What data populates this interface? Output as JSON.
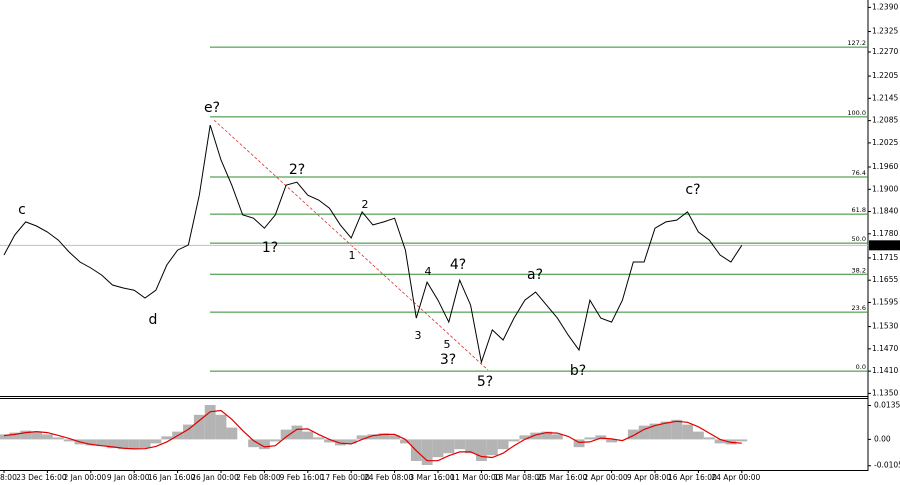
{
  "chart_data": {
    "type": "line",
    "categories": [
      "8:00",
      null,
      null,
      null,
      "23 Dec 16:00",
      null,
      null,
      null,
      "2 Jan 00:00",
      null,
      null,
      null,
      "9 Jan 08:00",
      null,
      null,
      null,
      "16 Jan 16:00",
      null,
      null,
      null,
      "26 Jan 00:00",
      null,
      null,
      null,
      "2 Feb 08:00",
      null,
      null,
      null,
      "9 Feb 16:00",
      null,
      null,
      null,
      "17 Feb 00:00",
      null,
      null,
      null,
      "24 Feb 08:00",
      null,
      null,
      null,
      "3 Mar 16:00",
      null,
      null,
      null,
      "11 Mar 00:00",
      null,
      null,
      null,
      "18 Mar 08:00",
      null,
      null,
      null,
      "25 Mar 16:00",
      null,
      null,
      null,
      "2 Apr 00:00",
      null,
      null,
      null,
      "9 Apr 08:00",
      null,
      null,
      null,
      "16 Apr 16:00",
      null,
      null,
      null,
      "24 Apr 00:00"
    ],
    "values": [
      1.1723,
      1.1777,
      1.1812,
      1.1801,
      1.1785,
      1.1763,
      1.1731,
      1.1704,
      1.1688,
      1.1669,
      1.1642,
      1.1634,
      1.1628,
      1.1607,
      1.1628,
      1.1696,
      1.1736,
      1.175,
      1.1884,
      1.2073,
      1.1979,
      1.1911,
      1.1831,
      1.1822,
      1.1795,
      1.1831,
      1.1911,
      1.1919,
      1.1884,
      1.1871,
      1.1849,
      1.1804,
      1.1769,
      1.1839,
      1.1804,
      1.1812,
      1.1822,
      1.1736,
      1.1553,
      1.165,
      1.1601,
      1.1542,
      1.1655,
      1.1588,
      1.1434,
      1.1521,
      1.1494,
      1.1553,
      1.1601,
      1.1623,
      1.1588,
      1.1553,
      1.1507,
      1.1467,
      1.1601,
      1.1553,
      1.1542,
      1.1601,
      1.1704,
      1.1704,
      1.1795,
      1.1812,
      1.1817,
      1.1839,
      1.1785,
      1.1763,
      1.1723,
      1.1704,
      1.1749
    ],
    "color": "#000000",
    "ylim": [
      1.1343,
      1.241
    ],
    "yticks": [
      {
        "value": 1.239,
        "label": "1.2390"
      },
      1.2325,
      {
        "value": 1.227,
        "label": "1.2270"
      },
      1.2205,
      1.2145,
      1.2085,
      1.2025,
      {
        "value": 1.196,
        "label": "1.1960"
      },
      {
        "value": 1.19,
        "label": "1.1900"
      },
      {
        "value": 1.184,
        "label": "1.1840"
      },
      {
        "value": 1.178,
        "label": "1.1780"
      },
      1.1715,
      1.1655,
      1.1595,
      {
        "value": 1.153,
        "label": "1.1530"
      },
      {
        "value": 1.147,
        "label": "1.1470"
      },
      {
        "value": 1.141,
        "label": "1.1410"
      },
      {
        "value": 1.135,
        "label": "1.1350"
      }
    ],
    "last_price": 1.1749,
    "fib_color": "#2e8b2e",
    "fib_levels": [
      {
        "label": "127.2",
        "price": 1.2283
      },
      {
        "label": "100.0",
        "price": 1.2095
      },
      {
        "label": "76.4",
        "price": 1.1933
      },
      {
        "label": "61.8",
        "price": 1.1833
      },
      {
        "label": "50.0",
        "price": 1.1755
      },
      {
        "label": "38.2",
        "price": 1.1671
      },
      {
        "label": "23.6",
        "price": 1.1569
      },
      {
        "label": "0.0",
        "price": 1.141
      }
    ],
    "annotations": [
      {
        "text": "c",
        "color": "#e00000"
      },
      {
        "text": "d",
        "color": "#e00000"
      },
      {
        "text": "e?",
        "color": "#e00000"
      },
      {
        "text": "2?",
        "color": "#e00000"
      },
      {
        "text": "1?",
        "color": "#e00000"
      },
      {
        "text": "2",
        "color": "#2233cc"
      },
      {
        "text": "1",
        "color": "#2233cc"
      },
      {
        "text": "3",
        "color": "#2233cc"
      },
      {
        "text": "4",
        "color": "#2233cc"
      },
      {
        "text": "5",
        "color": "#2233cc"
      },
      {
        "text": "4?",
        "color": "#e00000"
      },
      {
        "text": "3?",
        "color": "#e00000"
      },
      {
        "text": "5?",
        "color": "#e00000"
      },
      {
        "text": "a?",
        "color": "#e00000"
      },
      {
        "text": "b?",
        "color": "#e00000"
      },
      {
        "text": "c?",
        "color": "#e00000"
      }
    ],
    "oscillator": {
      "type": "bar",
      "histogram_color": "#b4b4b4",
      "signal_color": "#e00000",
      "histogram": [
        0.002,
        0.0027,
        0.0035,
        0.0031,
        0.002,
        0.0008,
        -0.0008,
        -0.002,
        -0.0024,
        -0.0027,
        -0.0035,
        -0.0039,
        -0.0039,
        -0.0035,
        -0.0016,
        0.0012,
        0.0031,
        0.0059,
        0.0098,
        0.0137,
        0.0098,
        0.0047,
        0,
        -0.0031,
        -0.0039,
        -0.0008,
        0.0039,
        0.0055,
        0.0031,
        0.0008,
        -0.0012,
        -0.0024,
        -0.0016,
        0.0016,
        0.002,
        0.0024,
        0.0016,
        -0.0016,
        -0.0086,
        -0.0102,
        -0.0071,
        -0.0055,
        -0.0039,
        -0.0055,
        -0.0086,
        -0.0063,
        -0.0039,
        -0.0008,
        0.0016,
        0.0027,
        0.0031,
        0.002,
        0,
        -0.0031,
        0.0008,
        0.0016,
        -0.0012,
        0,
        0.0039,
        0.0055,
        0.0063,
        0.0071,
        0.0078,
        0.0059,
        0.0031,
        0.0008,
        -0.0016,
        -0.002,
        -0.0008
      ],
      "signal": [
        0.0015,
        0.002,
        0.0027,
        0.0031,
        0.0027,
        0.0016,
        0.0004,
        -0.001,
        -0.002,
        -0.0025,
        -0.003,
        -0.0035,
        -0.0038,
        -0.0037,
        -0.0028,
        -0.001,
        0.0015,
        0.004,
        0.0075,
        0.011,
        0.0115,
        0.008,
        0.0035,
        -0.0005,
        -0.003,
        -0.0025,
        0.001,
        0.004,
        0.0042,
        0.002,
        0,
        -0.0015,
        -0.0018,
        0,
        0.0015,
        0.002,
        0.002,
        0,
        -0.0045,
        -0.0085,
        -0.0085,
        -0.0065,
        -0.005,
        -0.005,
        -0.0068,
        -0.0072,
        -0.0055,
        -0.0025,
        0,
        0.0018,
        0.0027,
        0.0025,
        0.0012,
        -0.0012,
        -0.001,
        0.0005,
        0.0002,
        -0.0005,
        0.0015,
        0.004,
        0.0055,
        0.0065,
        0.0072,
        0.0068,
        0.005,
        0.0025,
        0,
        -0.0012,
        -0.0015
      ],
      "ylim": [
        -0.0122,
        0.0161
      ],
      "yticks": [
        0.0135,
        {
          "value": 0,
          "label": "0.00"
        },
        -0.0105
      ]
    }
  }
}
